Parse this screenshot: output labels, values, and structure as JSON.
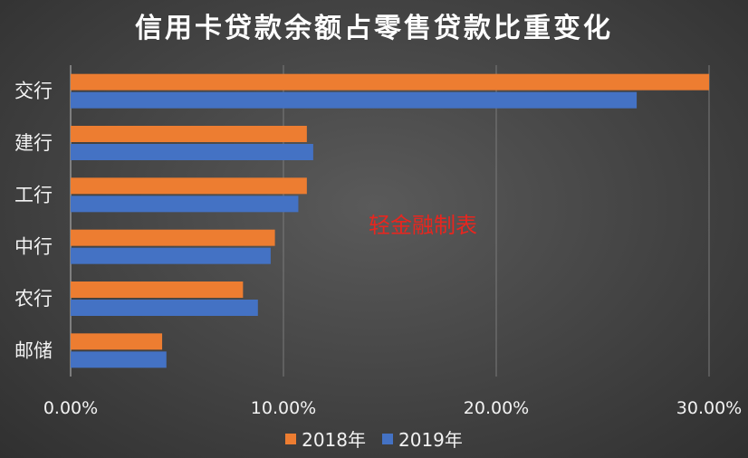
{
  "chart_data": {
    "type": "bar",
    "orientation": "horizontal",
    "title": "信用卡贷款余额占零售贷款比重变化",
    "categories": [
      "交行",
      "建行",
      "工行",
      "中行",
      "农行",
      "邮储"
    ],
    "series": [
      {
        "name": "2018年",
        "color": "#ed7d31",
        "values": [
          30.0,
          11.1,
          11.1,
          9.6,
          8.1,
          4.3
        ]
      },
      {
        "name": "2019年",
        "color": "#4472c4",
        "values": [
          26.6,
          11.4,
          10.7,
          9.4,
          8.8,
          4.5
        ]
      }
    ],
    "xlim": [
      0,
      30
    ],
    "xticks": [
      0,
      10,
      20,
      30
    ],
    "xtick_labels": [
      "0.00%",
      "10.00%",
      "20.00%",
      "30.00%"
    ],
    "grid": true,
    "legend": "bottom",
    "annotation": "轻金融制表"
  }
}
